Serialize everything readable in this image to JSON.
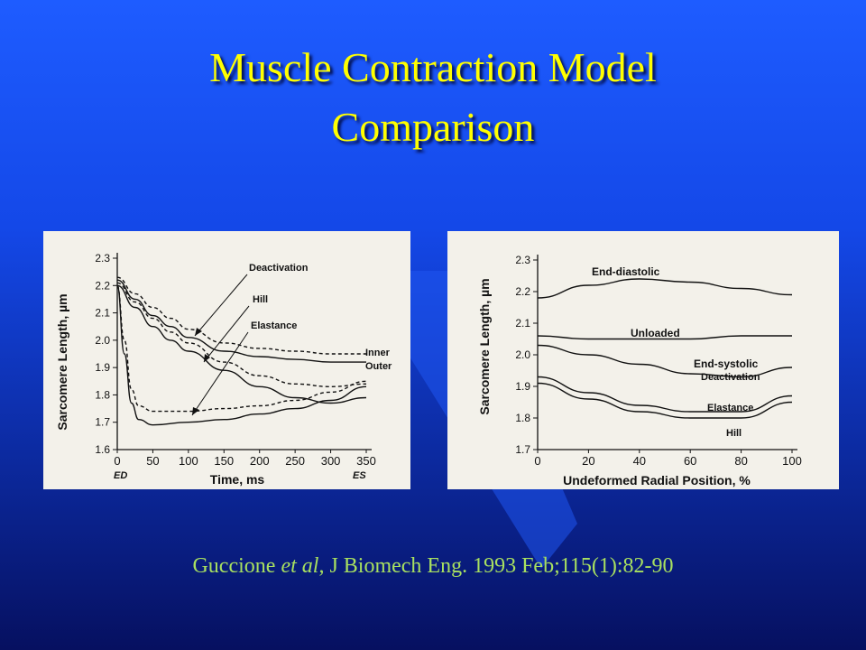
{
  "slide": {
    "title_line1": "Muscle Contraction Model",
    "title_line2": "Comparison",
    "citation_author": "Guccione ",
    "citation_etal": "et al",
    "citation_rest": ", J Biomech Eng. 1993 Feb;115(1):82-90",
    "colors": {
      "title": "#ffff00",
      "citation": "#a8e060",
      "background": "#1448e8"
    }
  },
  "chart_data": [
    {
      "type": "line",
      "xlabel": "Time, ms",
      "ylabel": "Sarcomere Length, µm",
      "xlim": [
        0,
        350
      ],
      "ylim": [
        1.6,
        2.3
      ],
      "xticks": [
        "0",
        "50",
        "100",
        "150",
        "200",
        "250",
        "300",
        "350"
      ],
      "yticks": [
        "1.6",
        "1.7",
        "1.8",
        "1.9",
        "2.0",
        "2.1",
        "2.2",
        "2.3"
      ],
      "x_annotations": {
        "start": "ED",
        "end": "ES"
      },
      "labels": {
        "deactivation": "Deactivation",
        "hill": "Hill",
        "elastance": "Elastance",
        "inner": "Inner",
        "outer": "Outer"
      },
      "series": [
        {
          "name": "Deactivation",
          "style": "dashed",
          "x": [
            0,
            25,
            50,
            75,
            100,
            150,
            200,
            250,
            300,
            350
          ],
          "y": [
            2.21,
            2.14,
            2.08,
            2.03,
            1.99,
            1.92,
            1.87,
            1.84,
            1.83,
            1.84
          ]
        },
        {
          "name": "Deactivation",
          "style": "solid",
          "x": [
            0,
            25,
            50,
            75,
            100,
            150,
            200,
            250,
            300,
            350
          ],
          "y": [
            2.2,
            2.12,
            2.05,
            2.0,
            1.96,
            1.89,
            1.83,
            1.79,
            1.77,
            1.79
          ]
        },
        {
          "name": "Hill",
          "style": "dashed",
          "x": [
            0,
            25,
            50,
            75,
            100,
            150,
            200,
            250,
            300,
            350
          ],
          "y": [
            2.23,
            2.17,
            2.12,
            2.08,
            2.04,
            1.99,
            1.97,
            1.96,
            1.95,
            1.95
          ]
        },
        {
          "name": "Hill",
          "style": "solid",
          "x": [
            0,
            25,
            50,
            75,
            100,
            150,
            200,
            250,
            300,
            350
          ],
          "y": [
            2.22,
            2.15,
            2.09,
            2.05,
            2.01,
            1.96,
            1.94,
            1.93,
            1.92,
            1.92
          ]
        },
        {
          "name": "Elastance",
          "style": "dashed",
          "x": [
            0,
            10,
            20,
            30,
            50,
            100,
            150,
            200,
            250,
            300,
            350
          ],
          "y": [
            2.2,
            2.0,
            1.82,
            1.76,
            1.74,
            1.74,
            1.75,
            1.76,
            1.78,
            1.81,
            1.85
          ]
        },
        {
          "name": "Elastance",
          "style": "solid",
          "x": [
            0,
            10,
            20,
            30,
            50,
            100,
            150,
            200,
            250,
            300,
            350
          ],
          "y": [
            2.2,
            1.95,
            1.77,
            1.71,
            1.69,
            1.7,
            1.71,
            1.73,
            1.75,
            1.78,
            1.83
          ]
        }
      ]
    },
    {
      "type": "line",
      "xlabel": "Undeformed Radial Position, %",
      "ylabel": "Sarcomere Length, µm",
      "xlim": [
        0,
        100
      ],
      "ylim": [
        1.7,
        2.3
      ],
      "xticks": [
        "0",
        "20",
        "40",
        "60",
        "80",
        "100"
      ],
      "yticks": [
        "1.7",
        "1.8",
        "1.9",
        "2.0",
        "2.1",
        "2.2",
        "2.3"
      ],
      "labels": {
        "end_diastolic": "End-diastolic",
        "unloaded": "Unloaded",
        "end_systolic": "End-systolic",
        "deactivation": "Deactivation",
        "elastance": "Elastance",
        "hill": "Hill"
      },
      "series": [
        {
          "name": "End-diastolic",
          "x": [
            0,
            20,
            40,
            60,
            80,
            100
          ],
          "y": [
            2.18,
            2.22,
            2.24,
            2.23,
            2.21,
            2.19
          ]
        },
        {
          "name": "Unloaded",
          "x": [
            0,
            20,
            40,
            60,
            80,
            100
          ],
          "y": [
            2.06,
            2.05,
            2.05,
            2.05,
            2.06,
            2.06
          ]
        },
        {
          "name": "Deactivation",
          "x": [
            0,
            20,
            40,
            60,
            80,
            100
          ],
          "y": [
            2.03,
            2.0,
            1.97,
            1.94,
            1.93,
            1.96
          ]
        },
        {
          "name": "Elastance",
          "x": [
            0,
            20,
            40,
            60,
            80,
            100
          ],
          "y": [
            1.93,
            1.88,
            1.84,
            1.82,
            1.82,
            1.87
          ]
        },
        {
          "name": "Hill",
          "x": [
            0,
            20,
            40,
            60,
            80,
            100
          ],
          "y": [
            1.91,
            1.86,
            1.82,
            1.8,
            1.8,
            1.85
          ]
        }
      ]
    }
  ]
}
